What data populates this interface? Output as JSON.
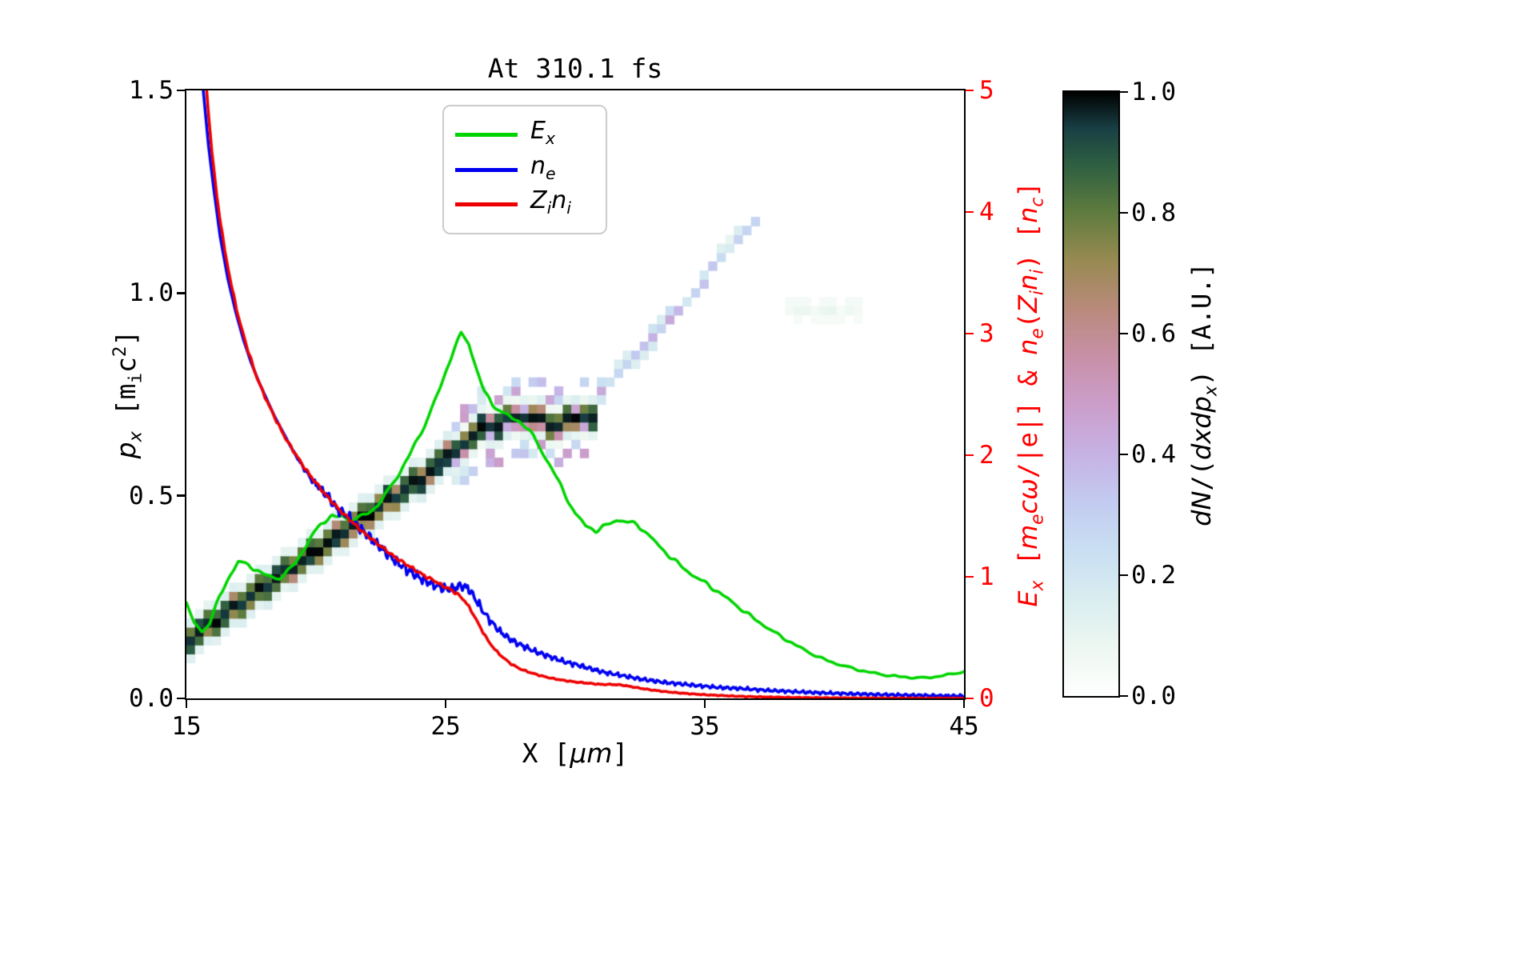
{
  "chart_data": {
    "type": "heatmap+line",
    "title": "At 310.1 fs",
    "xlabel": "X [μm]",
    "ylabel_left": "p_x [m_i c^2]",
    "ylabel_right": "E_x [m_e cω/|e|] & n_e(Z_i n_i) [n_c]",
    "colorbar_label": "dN/(dxdp_x) [A.U.]",
    "xlim": [
      15,
      45
    ],
    "ylim_left": [
      0.0,
      1.5
    ],
    "ylim_right": [
      0,
      5
    ],
    "x_ticks": [
      "15",
      "25",
      "35",
      "45"
    ],
    "y_ticks_left": [
      "0.0",
      "0.5",
      "1.0",
      "1.5"
    ],
    "y_ticks_right": [
      "0",
      "1",
      "2",
      "3",
      "4",
      "5"
    ],
    "colorbar_ticks": [
      "0.0",
      "0.2",
      "0.4",
      "0.6",
      "0.8",
      "1.0"
    ],
    "legend_position": "upper center-left",
    "axis_color_right": "#ff0000",
    "series": [
      {
        "name": "E_x",
        "axis": "right",
        "color": "#00d400",
        "noise": {
          "amp": 0.02,
          "f": [
            6.7,
            11.3
          ]
        },
        "x": [
          15.0,
          15.3,
          15.6,
          15.9,
          16.3,
          16.7,
          17.0,
          17.4,
          17.8,
          18.2,
          18.6,
          19.0,
          19.4,
          19.8,
          20.2,
          20.6,
          21.0,
          21.4,
          21.8,
          22.2,
          22.6,
          23.0,
          23.4,
          23.8,
          24.2,
          24.6,
          25.0,
          25.3,
          25.6,
          25.9,
          26.2,
          26.5,
          26.8,
          27.2,
          27.6,
          28.0,
          28.4,
          28.8,
          29.2,
          29.6,
          30.0,
          30.4,
          30.8,
          31.2,
          31.6,
          32.0,
          32.4,
          32.8,
          33.2,
          33.6,
          34.0,
          34.5,
          35.0,
          35.5,
          36.0,
          36.5,
          37.0,
          37.5,
          38.0,
          38.5,
          39.0,
          39.5,
          40.0,
          40.5,
          41.0,
          41.5,
          42.0,
          42.5,
          43.0,
          43.5,
          44.0,
          44.5,
          45.0
        ],
        "y": [
          0.78,
          0.62,
          0.55,
          0.62,
          0.85,
          1.02,
          1.12,
          1.1,
          1.04,
          1.0,
          0.99,
          1.06,
          1.18,
          1.32,
          1.44,
          1.5,
          1.49,
          1.47,
          1.5,
          1.55,
          1.65,
          1.78,
          1.92,
          2.08,
          2.25,
          2.45,
          2.68,
          2.86,
          3.0,
          2.92,
          2.7,
          2.52,
          2.42,
          2.35,
          2.3,
          2.26,
          2.15,
          2.0,
          1.85,
          1.68,
          1.52,
          1.42,
          1.38,
          1.42,
          1.47,
          1.45,
          1.43,
          1.35,
          1.26,
          1.18,
          1.1,
          1.02,
          0.95,
          0.88,
          0.8,
          0.72,
          0.64,
          0.57,
          0.5,
          0.44,
          0.38,
          0.33,
          0.29,
          0.26,
          0.23,
          0.21,
          0.19,
          0.18,
          0.17,
          0.17,
          0.18,
          0.2,
          0.22
        ]
      },
      {
        "name": "n_e",
        "axis": "right",
        "color": "#0000f0",
        "noise": {
          "amp": 0.055,
          "f": [
            23.7,
            41.3
          ],
          "from_x": 19
        },
        "x": [
          15.65,
          15.85,
          16.05,
          16.3,
          16.6,
          16.9,
          17.2,
          17.5,
          17.8,
          18.1,
          18.4,
          18.7,
          19.0,
          19.3,
          19.6,
          19.9,
          20.2,
          20.5,
          20.8,
          21.1,
          21.4,
          21.7,
          22.0,
          22.3,
          22.6,
          22.9,
          23.2,
          23.5,
          23.8,
          24.1,
          24.4,
          24.7,
          25.0,
          25.3,
          25.6,
          25.9,
          26.2,
          26.5,
          26.8,
          27.1,
          27.4,
          27.7,
          28.0,
          28.4,
          28.8,
          29.2,
          29.6,
          30.0,
          30.5,
          31.0,
          31.5,
          32.0,
          32.5,
          33.0,
          33.5,
          34.0,
          34.5,
          35.0,
          35.5,
          36.0,
          36.5,
          37.0,
          37.5,
          38.0,
          39.0,
          40.0,
          41.0,
          42.0,
          43.0,
          44.0,
          45.0
        ],
        "y": [
          5.0,
          4.55,
          4.2,
          3.8,
          3.45,
          3.18,
          2.95,
          2.76,
          2.6,
          2.46,
          2.32,
          2.2,
          2.08,
          1.97,
          1.87,
          1.78,
          1.72,
          1.65,
          1.56,
          1.52,
          1.46,
          1.4,
          1.34,
          1.28,
          1.22,
          1.16,
          1.11,
          1.06,
          1.02,
          0.98,
          0.95,
          0.92,
          0.9,
          0.9,
          0.93,
          0.9,
          0.8,
          0.7,
          0.62,
          0.55,
          0.5,
          0.46,
          0.43,
          0.39,
          0.36,
          0.33,
          0.3,
          0.28,
          0.25,
          0.22,
          0.2,
          0.18,
          0.16,
          0.145,
          0.13,
          0.12,
          0.11,
          0.1,
          0.09,
          0.085,
          0.08,
          0.072,
          0.065,
          0.06,
          0.05,
          0.042,
          0.036,
          0.03,
          0.026,
          0.022,
          0.02
        ]
      },
      {
        "name": "Z_i n_i",
        "axis": "right",
        "color": "#ee0000",
        "noise": {
          "amp": 0.015,
          "f": [
            17.3,
            29.1
          ]
        },
        "x": [
          15.78,
          15.98,
          16.18,
          16.45,
          16.75,
          17.05,
          17.35,
          17.65,
          17.95,
          18.25,
          18.55,
          18.85,
          19.15,
          19.45,
          19.75,
          20.05,
          20.35,
          20.65,
          20.95,
          21.25,
          21.55,
          21.85,
          22.15,
          22.45,
          22.75,
          23.05,
          23.35,
          23.65,
          23.95,
          24.25,
          24.55,
          24.85,
          25.15,
          25.45,
          25.75,
          26.05,
          26.35,
          26.65,
          26.95,
          27.25,
          27.55,
          27.9,
          28.3,
          28.7,
          29.1,
          29.5,
          30.0,
          30.5,
          31.0,
          31.4,
          31.8,
          32.2,
          32.6,
          33.0,
          33.5,
          34.0,
          34.5,
          35.0,
          35.5,
          36.0,
          36.5,
          37.0,
          38.0,
          39.0,
          40.0,
          42.0,
          45.0
        ],
        "y": [
          5.0,
          4.5,
          4.12,
          3.72,
          3.38,
          3.1,
          2.88,
          2.68,
          2.52,
          2.38,
          2.25,
          2.13,
          2.03,
          1.93,
          1.84,
          1.76,
          1.68,
          1.61,
          1.54,
          1.48,
          1.42,
          1.36,
          1.31,
          1.26,
          1.21,
          1.16,
          1.12,
          1.08,
          1.04,
          1.0,
          0.97,
          0.93,
          0.9,
          0.86,
          0.8,
          0.7,
          0.58,
          0.47,
          0.39,
          0.33,
          0.28,
          0.24,
          0.21,
          0.185,
          0.165,
          0.15,
          0.135,
          0.125,
          0.115,
          0.115,
          0.11,
          0.095,
          0.08,
          0.068,
          0.055,
          0.045,
          0.037,
          0.03,
          0.025,
          0.02,
          0.016,
          0.013,
          0.009,
          0.006,
          0.004,
          0.002,
          0.001
        ]
      }
    ],
    "heatmap": {
      "cell": {
        "dx": 0.33,
        "dp": 0.022
      },
      "main_band": {
        "x": [
          15,
          16,
          17,
          18,
          19,
          20,
          21,
          22,
          23,
          24,
          25,
          25.5,
          26,
          26.5,
          27,
          27.5,
          28,
          28.5,
          29,
          29.5,
          30,
          30.5
        ],
        "p": [
          0.13,
          0.175,
          0.22,
          0.265,
          0.31,
          0.355,
          0.4,
          0.445,
          0.49,
          0.535,
          0.58,
          0.605,
          0.63,
          0.655,
          0.67,
          0.68,
          0.68,
          0.675,
          0.67,
          0.67,
          0.675,
          0.69
        ],
        "profile": [
          0.14,
          0.85,
          1.0,
          0.85,
          0.14
        ]
      },
      "plateau_speckle": {
        "x_range": [
          25.2,
          30.4
        ],
        "value_range": [
          0.15,
          0.5
        ]
      },
      "trail": {
        "x": [
          30.7,
          31.5,
          32.5,
          33.5,
          34.5,
          35.5,
          36.3,
          36.9
        ],
        "p": [
          0.73,
          0.78,
          0.85,
          0.92,
          0.99,
          1.06,
          1.12,
          1.17
        ],
        "value_range": [
          0.15,
          0.45
        ]
      },
      "faint_patch": {
        "x_range": [
          38.2,
          40.6
        ],
        "p_center": 0.955,
        "value_range": [
          0.04,
          0.1
        ]
      }
    },
    "colormap": {
      "stops": [
        {
          "t": 0.0,
          "c": "#ffffff"
        },
        {
          "t": 0.08,
          "c": "#edf7f1"
        },
        {
          "t": 0.16,
          "c": "#d9edf0"
        },
        {
          "t": 0.24,
          "c": "#c9dff2"
        },
        {
          "t": 0.32,
          "c": "#c3cbf0"
        },
        {
          "t": 0.4,
          "c": "#c6b2e4"
        },
        {
          "t": 0.48,
          "c": "#cb9ecb"
        },
        {
          "t": 0.56,
          "c": "#c890a8"
        },
        {
          "t": 0.64,
          "c": "#b98a7c"
        },
        {
          "t": 0.72,
          "c": "#988a52"
        },
        {
          "t": 0.8,
          "c": "#5f7c3e"
        },
        {
          "t": 0.88,
          "c": "#2e5f41"
        },
        {
          "t": 0.94,
          "c": "#183f44"
        },
        {
          "t": 1.0,
          "c": "#000000"
        }
      ]
    }
  },
  "labels": {
    "xlabel_parts": [
      {
        "t": "X [",
        "s": "r"
      },
      {
        "t": "μm",
        "s": "i"
      },
      {
        "t": "]",
        "s": "r"
      }
    ],
    "ylabel_left_parts": [
      {
        "t": "p",
        "s": "i"
      },
      {
        "t": "x",
        "s": "isub"
      },
      {
        "t": " [m",
        "s": "r"
      },
      {
        "t": "i",
        "s": "sub"
      },
      {
        "t": "c",
        "s": "r"
      },
      {
        "t": "2",
        "s": "sup"
      },
      {
        "t": "]",
        "s": "r"
      }
    ],
    "ylabel_right_parts": [
      {
        "t": "E",
        "s": "i"
      },
      {
        "t": "x",
        "s": "isub"
      },
      {
        "t": " [",
        "s": "r"
      },
      {
        "t": "m",
        "s": "i"
      },
      {
        "t": "e",
        "s": "isub"
      },
      {
        "t": "c",
        "s": "i"
      },
      {
        "t": "ω",
        "s": "i"
      },
      {
        "t": "/|e|] & ",
        "s": "r"
      },
      {
        "t": "n",
        "s": "i"
      },
      {
        "t": "e",
        "s": "isub"
      },
      {
        "t": "(",
        "s": "r"
      },
      {
        "t": "Z",
        "s": "i"
      },
      {
        "t": "i",
        "s": "isub"
      },
      {
        "t": "n",
        "s": "i"
      },
      {
        "t": "i",
        "s": "isub"
      },
      {
        "t": ") [",
        "s": "r"
      },
      {
        "t": "n",
        "s": "i"
      },
      {
        "t": "c",
        "s": "isub"
      },
      {
        "t": "]",
        "s": "r"
      }
    ],
    "colorbar_label_parts": [
      {
        "t": "dN",
        "s": "i"
      },
      {
        "t": "/(",
        "s": "r"
      },
      {
        "t": "dxdp",
        "s": "i"
      },
      {
        "t": "x",
        "s": "isub"
      },
      {
        "t": ") [A.U.]",
        "s": "r"
      }
    ],
    "legend": [
      [
        {
          "t": "E",
          "s": "i"
        },
        {
          "t": "x",
          "s": "isub"
        }
      ],
      [
        {
          "t": "n",
          "s": "i"
        },
        {
          "t": "e",
          "s": "isub"
        }
      ],
      [
        {
          "t": "Z",
          "s": "i"
        },
        {
          "t": "i",
          "s": "isub"
        },
        {
          "t": "n",
          "s": "i"
        },
        {
          "t": "i",
          "s": "isub"
        }
      ]
    ]
  }
}
